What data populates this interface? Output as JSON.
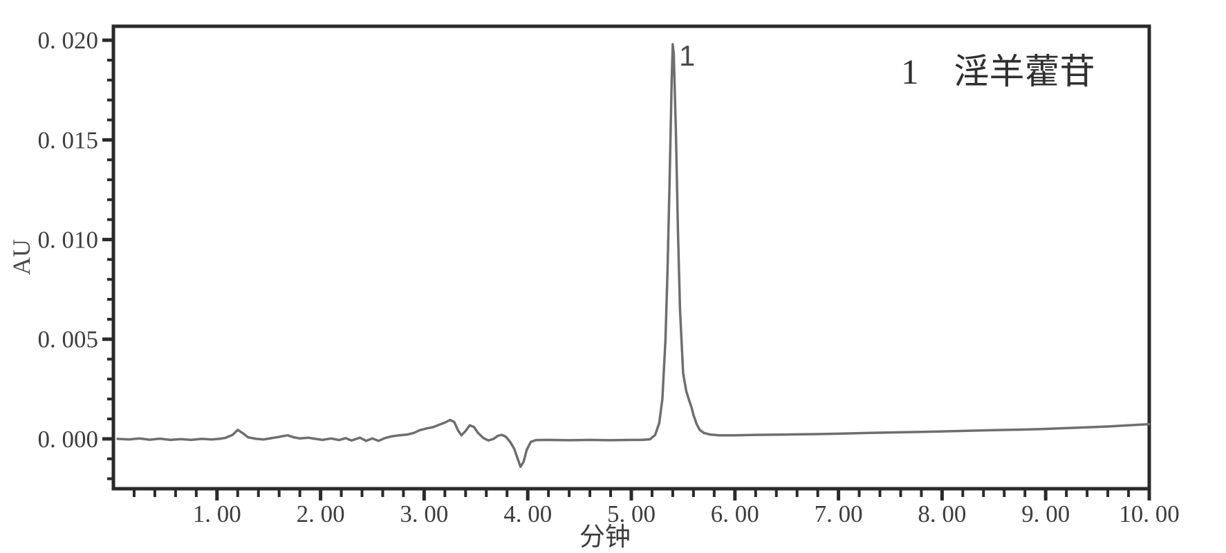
{
  "figure": {
    "ylabel": "AU",
    "xlabel": "分钟",
    "legend": "1　淫羊藿苷",
    "peak_annotation": "1"
  },
  "chart_data": {
    "type": "line",
    "title": "",
    "xlabel": "分钟",
    "ylabel": "AU",
    "xlim": [
      0,
      10.0
    ],
    "ylim": [
      -0.0025,
      0.0207
    ],
    "grid": false,
    "legend_position": "top-right",
    "legend_entries": [
      "1　淫羊藿苷"
    ],
    "x_major_ticks": [
      1,
      2,
      3,
      4,
      5,
      6,
      7,
      8,
      9,
      10
    ],
    "x_tick_labels": [
      "1. 00",
      "2. 00",
      "3. 00",
      "4. 00",
      "5. 00",
      "6. 00",
      "7. 00",
      "8. 00",
      "9. 00",
      "10. 00"
    ],
    "x_minor_step": 0.2,
    "y_major_ticks": [
      0.0,
      0.005,
      0.01,
      0.015,
      0.02
    ],
    "y_tick_labels": [
      "0. 000",
      "0. 005",
      "0. 010",
      "0. 015",
      "0. 020"
    ],
    "y_minor_step": 0.001,
    "peaks": [
      {
        "id": "1",
        "compound": "淫羊藿苷",
        "retention_time_min": 5.4,
        "height_au": 0.0198
      }
    ],
    "series": [
      {
        "name": "淫羊藿苷",
        "color": "#6e6e6e",
        "points": [
          [
            0.04,
            0.0
          ],
          [
            0.15,
            -3e-05
          ],
          [
            0.25,
            2e-05
          ],
          [
            0.35,
            -4e-05
          ],
          [
            0.45,
            1e-05
          ],
          [
            0.55,
            -5e-05
          ],
          [
            0.65,
            -1e-05
          ],
          [
            0.75,
            -5e-05
          ],
          [
            0.85,
            0.0
          ],
          [
            0.95,
            -3e-05
          ],
          [
            1.02,
            0.0
          ],
          [
            1.08,
            5e-05
          ],
          [
            1.15,
            0.0002
          ],
          [
            1.2,
            0.00045
          ],
          [
            1.25,
            0.00028
          ],
          [
            1.3,
            8e-05
          ],
          [
            1.38,
            0.0
          ],
          [
            1.45,
            -3e-05
          ],
          [
            1.52,
            3e-05
          ],
          [
            1.6,
            0.0001
          ],
          [
            1.68,
            0.00018
          ],
          [
            1.74,
            8e-05
          ],
          [
            1.8,
            2e-05
          ],
          [
            1.88,
            6e-05
          ],
          [
            1.95,
            0.0
          ],
          [
            2.02,
            -5e-05
          ],
          [
            2.1,
            2e-05
          ],
          [
            2.18,
            -6e-05
          ],
          [
            2.24,
            4e-05
          ],
          [
            2.3,
            -8e-05
          ],
          [
            2.38,
            6e-05
          ],
          [
            2.44,
            -0.0001
          ],
          [
            2.5,
            2e-05
          ],
          [
            2.56,
            -0.0001
          ],
          [
            2.62,
            4e-05
          ],
          [
            2.68,
            0.00012
          ],
          [
            2.76,
            0.00018
          ],
          [
            2.84,
            0.00022
          ],
          [
            2.9,
            0.0003
          ],
          [
            2.96,
            0.00044
          ],
          [
            3.02,
            0.00052
          ],
          [
            3.08,
            0.00058
          ],
          [
            3.14,
            0.0007
          ],
          [
            3.2,
            0.00082
          ],
          [
            3.25,
            0.00095
          ],
          [
            3.29,
            0.00085
          ],
          [
            3.33,
            0.0004
          ],
          [
            3.36,
            0.00018
          ],
          [
            3.4,
            0.0004
          ],
          [
            3.44,
            0.00068
          ],
          [
            3.48,
            0.0006
          ],
          [
            3.52,
            0.0003
          ],
          [
            3.57,
            5e-05
          ],
          [
            3.62,
            -8e-05
          ],
          [
            3.67,
            0.0
          ],
          [
            3.71,
            0.00015
          ],
          [
            3.75,
            0.0002
          ],
          [
            3.79,
            0.0001
          ],
          [
            3.83,
            -0.00015
          ],
          [
            3.87,
            -0.0005
          ],
          [
            3.9,
            -0.00095
          ],
          [
            3.93,
            -0.0014
          ],
          [
            3.96,
            -0.00115
          ],
          [
            3.99,
            -0.00055
          ],
          [
            4.03,
            -0.00015
          ],
          [
            4.08,
            -6e-05
          ],
          [
            4.2,
            -5e-05
          ],
          [
            4.4,
            -7e-05
          ],
          [
            4.6,
            -5e-05
          ],
          [
            4.8,
            -7e-05
          ],
          [
            5.0,
            -5e-05
          ],
          [
            5.1,
            -5e-05
          ],
          [
            5.18,
            -2e-05
          ],
          [
            5.23,
            0.0002
          ],
          [
            5.27,
            0.0008
          ],
          [
            5.3,
            0.002
          ],
          [
            5.33,
            0.005
          ],
          [
            5.35,
            0.0085
          ],
          [
            5.37,
            0.013
          ],
          [
            5.39,
            0.018
          ],
          [
            5.4,
            0.0198
          ],
          [
            5.41,
            0.0193
          ],
          [
            5.43,
            0.0155
          ],
          [
            5.45,
            0.0105
          ],
          [
            5.47,
            0.0065
          ],
          [
            5.5,
            0.0033
          ],
          [
            5.53,
            0.0024
          ],
          [
            5.56,
            0.0019
          ],
          [
            5.58,
            0.0016
          ],
          [
            5.6,
            0.0012
          ],
          [
            5.63,
            0.00075
          ],
          [
            5.66,
            0.00045
          ],
          [
            5.7,
            0.0003
          ],
          [
            5.76,
            0.00022
          ],
          [
            5.85,
            0.00018
          ],
          [
            6.0,
            0.00018
          ],
          [
            6.2,
            0.0002
          ],
          [
            6.5,
            0.00022
          ],
          [
            6.8,
            0.00024
          ],
          [
            7.0,
            0.00026
          ],
          [
            7.3,
            0.0003
          ],
          [
            7.6,
            0.00033
          ],
          [
            7.9,
            0.00036
          ],
          [
            8.2,
            0.0004
          ],
          [
            8.5,
            0.00044
          ],
          [
            8.8,
            0.00047
          ],
          [
            9.0,
            0.0005
          ],
          [
            9.3,
            0.00056
          ],
          [
            9.6,
            0.00062
          ],
          [
            9.8,
            0.00068
          ],
          [
            10.0,
            0.00074
          ]
        ]
      }
    ],
    "style": {
      "frame_color": "#2a2a2a",
      "tick_color": "#2a2a2a",
      "tick_label_color": "#3d3d3d",
      "trace_color": "#6e6e6e",
      "background": "#ffffff"
    }
  }
}
